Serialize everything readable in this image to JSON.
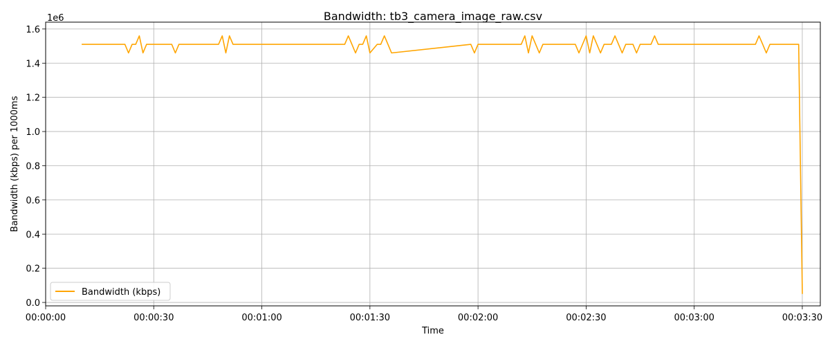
{
  "chart_data": {
    "type": "line",
    "title": "Bandwidth: tb3_camera_image_raw.csv",
    "xlabel": "Time",
    "ylabel": "Bandwidth (kbps) per 1000ms",
    "y_offset_label": "1e6",
    "xlim": [
      "00:00:00",
      "00:03:35"
    ],
    "ylim": [
      -0.02,
      1.64
    ],
    "x_ticks": [
      "00:00:00",
      "00:00:30",
      "00:01:00",
      "00:01:30",
      "00:02:00",
      "00:02:30",
      "00:03:00",
      "00:03:30"
    ],
    "y_ticks": [
      "0.0",
      "0.2",
      "0.4",
      "0.6",
      "0.8",
      "1.0",
      "1.2",
      "1.4",
      "1.6"
    ],
    "grid": true,
    "legend_position": "lower-left",
    "series": [
      {
        "name": "Bandwidth (kbps)",
        "color": "#FFA500",
        "x": [
          "00:00:10",
          "00:00:22",
          "00:00:23",
          "00:00:24",
          "00:00:25",
          "00:00:26",
          "00:00:27",
          "00:00:28",
          "00:00:35",
          "00:00:36",
          "00:00:37",
          "00:00:48",
          "00:00:49",
          "00:00:50",
          "00:00:51",
          "00:00:52",
          "00:01:23",
          "00:01:24",
          "00:01:25",
          "00:01:26",
          "00:01:27",
          "00:01:28",
          "00:01:29",
          "00:01:30",
          "00:01:32",
          "00:01:33",
          "00:01:34",
          "00:01:35",
          "00:01:36",
          "00:01:58",
          "00:01:59",
          "00:02:00",
          "00:02:12",
          "00:02:13",
          "00:02:14",
          "00:02:15",
          "00:02:16",
          "00:02:17",
          "00:02:18",
          "00:02:27",
          "00:02:28",
          "00:02:30",
          "00:02:31",
          "00:02:32",
          "00:02:33",
          "00:02:34",
          "00:02:35",
          "00:02:37",
          "00:02:38",
          "00:02:39",
          "00:02:40",
          "00:02:41",
          "00:02:43",
          "00:02:44",
          "00:02:45",
          "00:02:48",
          "00:02:49",
          "00:02:50",
          "00:03:17",
          "00:03:18",
          "00:03:19",
          "00:03:20",
          "00:03:21",
          "00:03:29",
          "00:03:30"
        ],
        "values": [
          1.51,
          1.51,
          1.46,
          1.51,
          1.51,
          1.56,
          1.46,
          1.51,
          1.51,
          1.46,
          1.51,
          1.51,
          1.56,
          1.46,
          1.56,
          1.51,
          1.51,
          1.56,
          1.51,
          1.46,
          1.51,
          1.51,
          1.56,
          1.46,
          1.51,
          1.51,
          1.56,
          1.51,
          1.46,
          1.51,
          1.46,
          1.51,
          1.51,
          1.56,
          1.46,
          1.56,
          1.51,
          1.46,
          1.51,
          1.51,
          1.46,
          1.56,
          1.46,
          1.56,
          1.51,
          1.46,
          1.51,
          1.51,
          1.56,
          1.51,
          1.46,
          1.51,
          1.51,
          1.46,
          1.51,
          1.51,
          1.56,
          1.51,
          1.51,
          1.56,
          1.51,
          1.46,
          1.51,
          1.51,
          0.05
        ]
      }
    ]
  }
}
